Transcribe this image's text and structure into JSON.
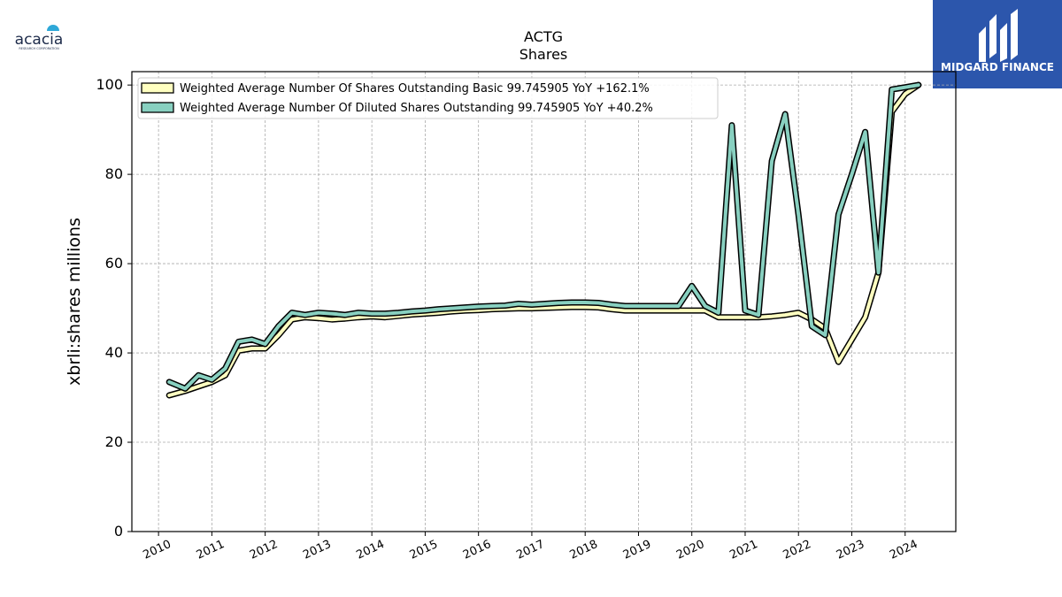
{
  "logos": {
    "left_brand": "acacia",
    "left_brand_sub": "RESEARCH CORPORATION",
    "right_brand": "MIDGARD FINANCE"
  },
  "colors": {
    "basic_fill": "#ffffc0",
    "diluted_fill": "#88d0c0",
    "outline": "#000000",
    "grid": "#aaaaaa",
    "brand_blue": "#2c56ac"
  },
  "chart_data": {
    "type": "line",
    "title": "ACTG",
    "subtitle": "Shares",
    "xlabel": "",
    "ylabel": "xbrli:shares millions",
    "xlim": [
      2009.5,
      2024.95
    ],
    "ylim": [
      0,
      103
    ],
    "grid": true,
    "legend_position": "top-left",
    "x_ticks": [
      "2010",
      "2011",
      "2012",
      "2013",
      "2014",
      "2015",
      "2016",
      "2017",
      "2018",
      "2019",
      "2020",
      "2021",
      "2022",
      "2023",
      "2024"
    ],
    "y_ticks": [
      "0",
      "20",
      "40",
      "60",
      "80",
      "100"
    ],
    "series": [
      {
        "name": "Weighted Average Number Of Shares Outstanding Basic",
        "legend_label": "Weighted Average Number Of Shares Outstanding Basic  99.745905 YoY +162.1%",
        "color": "#ffffc0",
        "x": [
          2010.2,
          2010.5,
          2010.75,
          2011.0,
          2011.25,
          2011.5,
          2011.75,
          2012.0,
          2012.25,
          2012.5,
          2012.75,
          2013.0,
          2013.25,
          2013.5,
          2013.75,
          2014.0,
          2014.25,
          2014.5,
          2014.75,
          2015.0,
          2015.25,
          2015.5,
          2015.75,
          2016.0,
          2016.25,
          2016.5,
          2016.75,
          2017.0,
          2017.25,
          2017.5,
          2017.75,
          2018.0,
          2018.25,
          2018.5,
          2018.75,
          2019.0,
          2019.25,
          2019.5,
          2019.75,
          2020.0,
          2020.25,
          2020.5,
          2020.75,
          2021.0,
          2021.25,
          2021.5,
          2021.75,
          2022.0,
          2022.25,
          2022.5,
          2022.75,
          2023.0,
          2023.25,
          2023.5,
          2023.75,
          2024.0,
          2024.25
        ],
        "values": [
          30.5,
          31.5,
          32.5,
          33.5,
          35,
          40.5,
          41,
          41,
          44,
          47.5,
          48,
          47.8,
          47.5,
          47.7,
          48,
          48.2,
          48,
          48.3,
          48.6,
          48.8,
          49,
          49.3,
          49.5,
          49.6,
          49.8,
          49.9,
          50,
          50,
          50.1,
          50.2,
          50.3,
          50.3,
          50.2,
          49.8,
          49.5,
          49.5,
          49.5,
          49.5,
          49.5,
          49.5,
          49.5,
          48,
          48,
          48,
          48,
          48.2,
          48.5,
          49,
          47.5,
          45.5,
          38,
          43,
          48,
          58,
          94,
          98,
          100
        ]
      },
      {
        "name": "Weighted Average Number Of Diluted Shares Outstanding",
        "legend_label": "Weighted Average Number Of Diluted Shares Outstanding  99.745905 YoY +40.2%",
        "color": "#88d0c0",
        "x": [
          2010.2,
          2010.5,
          2010.75,
          2011.0,
          2011.25,
          2011.5,
          2011.75,
          2012.0,
          2012.25,
          2012.5,
          2012.75,
          2013.0,
          2013.25,
          2013.5,
          2013.75,
          2014.0,
          2014.25,
          2014.5,
          2014.75,
          2015.0,
          2015.25,
          2015.5,
          2015.75,
          2016.0,
          2016.25,
          2016.5,
          2016.75,
          2017.0,
          2017.25,
          2017.5,
          2017.75,
          2018.0,
          2018.25,
          2018.5,
          2018.75,
          2019.0,
          2019.25,
          2019.5,
          2019.75,
          2020.0,
          2020.25,
          2020.5,
          2020.75,
          2021.0,
          2021.25,
          2021.5,
          2021.75,
          2022.0,
          2022.25,
          2022.5,
          2022.75,
          2023.0,
          2023.25,
          2023.5,
          2023.75,
          2024.0,
          2024.25
        ],
        "values": [
          33.5,
          32,
          35,
          34,
          36.5,
          42.5,
          43,
          42,
          46,
          49,
          48.5,
          49,
          48.8,
          48.5,
          49,
          48.8,
          48.8,
          49,
          49.3,
          49.5,
          49.8,
          50,
          50.2,
          50.4,
          50.5,
          50.6,
          51,
          50.8,
          51,
          51.2,
          51.3,
          51.3,
          51.2,
          50.8,
          50.5,
          50.5,
          50.5,
          50.5,
          50.5,
          55,
          50.5,
          49,
          91,
          49.5,
          48.5,
          83,
          93.5,
          71,
          46,
          44,
          71,
          80,
          89.5,
          58,
          99,
          99.5,
          100
        ]
      }
    ]
  }
}
